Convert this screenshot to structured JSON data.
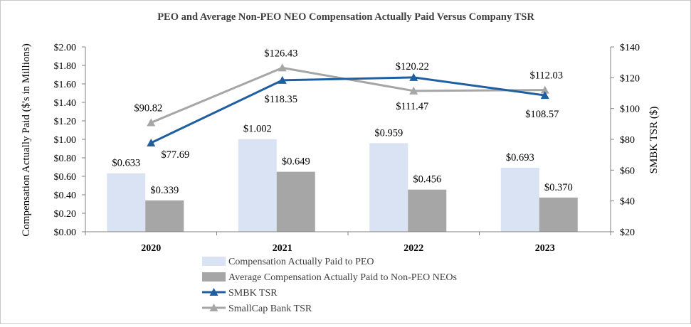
{
  "chart_data": {
    "type": "bar",
    "title": "PEO and Average Non-PEO NEO Compensation Actually Paid Versus Company TSR",
    "categories": [
      "2020",
      "2021",
      "2022",
      "2023"
    ],
    "ylabel": "Compensation Actually Paid ($'s in Millions)",
    "y2label": "SMBK TSR ($)",
    "ylim": [
      0,
      2.0
    ],
    "y2lim": [
      20,
      140
    ],
    "yticks": [
      "$0.00",
      "$0.20",
      "$0.40",
      "$0.60",
      "$0.80",
      "$1.00",
      "$1.20",
      "$1.40",
      "$1.60",
      "$1.80",
      "$2.00"
    ],
    "y2ticks": [
      "$20",
      "$40",
      "$60",
      "$80",
      "$100",
      "$120",
      "$140"
    ],
    "legend_position": "bottom",
    "series": [
      {
        "name": "Compensation Actually Paid to PEO",
        "kind": "bar",
        "axis": "left",
        "color": "#dae3f3",
        "values": [
          0.633,
          1.002,
          0.959,
          0.693
        ],
        "labels": [
          "$0.633",
          "$1.002",
          "$0.959",
          "$0.693"
        ]
      },
      {
        "name": "Average Compensation Actually Paid to Non-PEO NEOs",
        "kind": "bar",
        "axis": "left",
        "color": "#a6a6a6",
        "values": [
          0.339,
          0.649,
          0.456,
          0.37
        ],
        "labels": [
          "$0.339",
          "$0.649",
          "$0.456",
          "$0.370"
        ]
      },
      {
        "name": "SMBK TSR",
        "kind": "line",
        "axis": "right",
        "color": "#1f5fa0",
        "values": [
          77.69,
          118.35,
          120.22,
          108.57
        ],
        "labels": [
          "$77.69",
          "$118.35",
          "$120.22",
          "$108.57"
        ]
      },
      {
        "name": "SmallCap Bank TSR",
        "kind": "line",
        "axis": "right",
        "color": "#a6a6a6",
        "values": [
          90.82,
          126.43,
          111.47,
          112.03
        ],
        "labels": [
          "$90.82",
          "$126.43",
          "$111.47",
          "$112.03"
        ]
      }
    ]
  }
}
